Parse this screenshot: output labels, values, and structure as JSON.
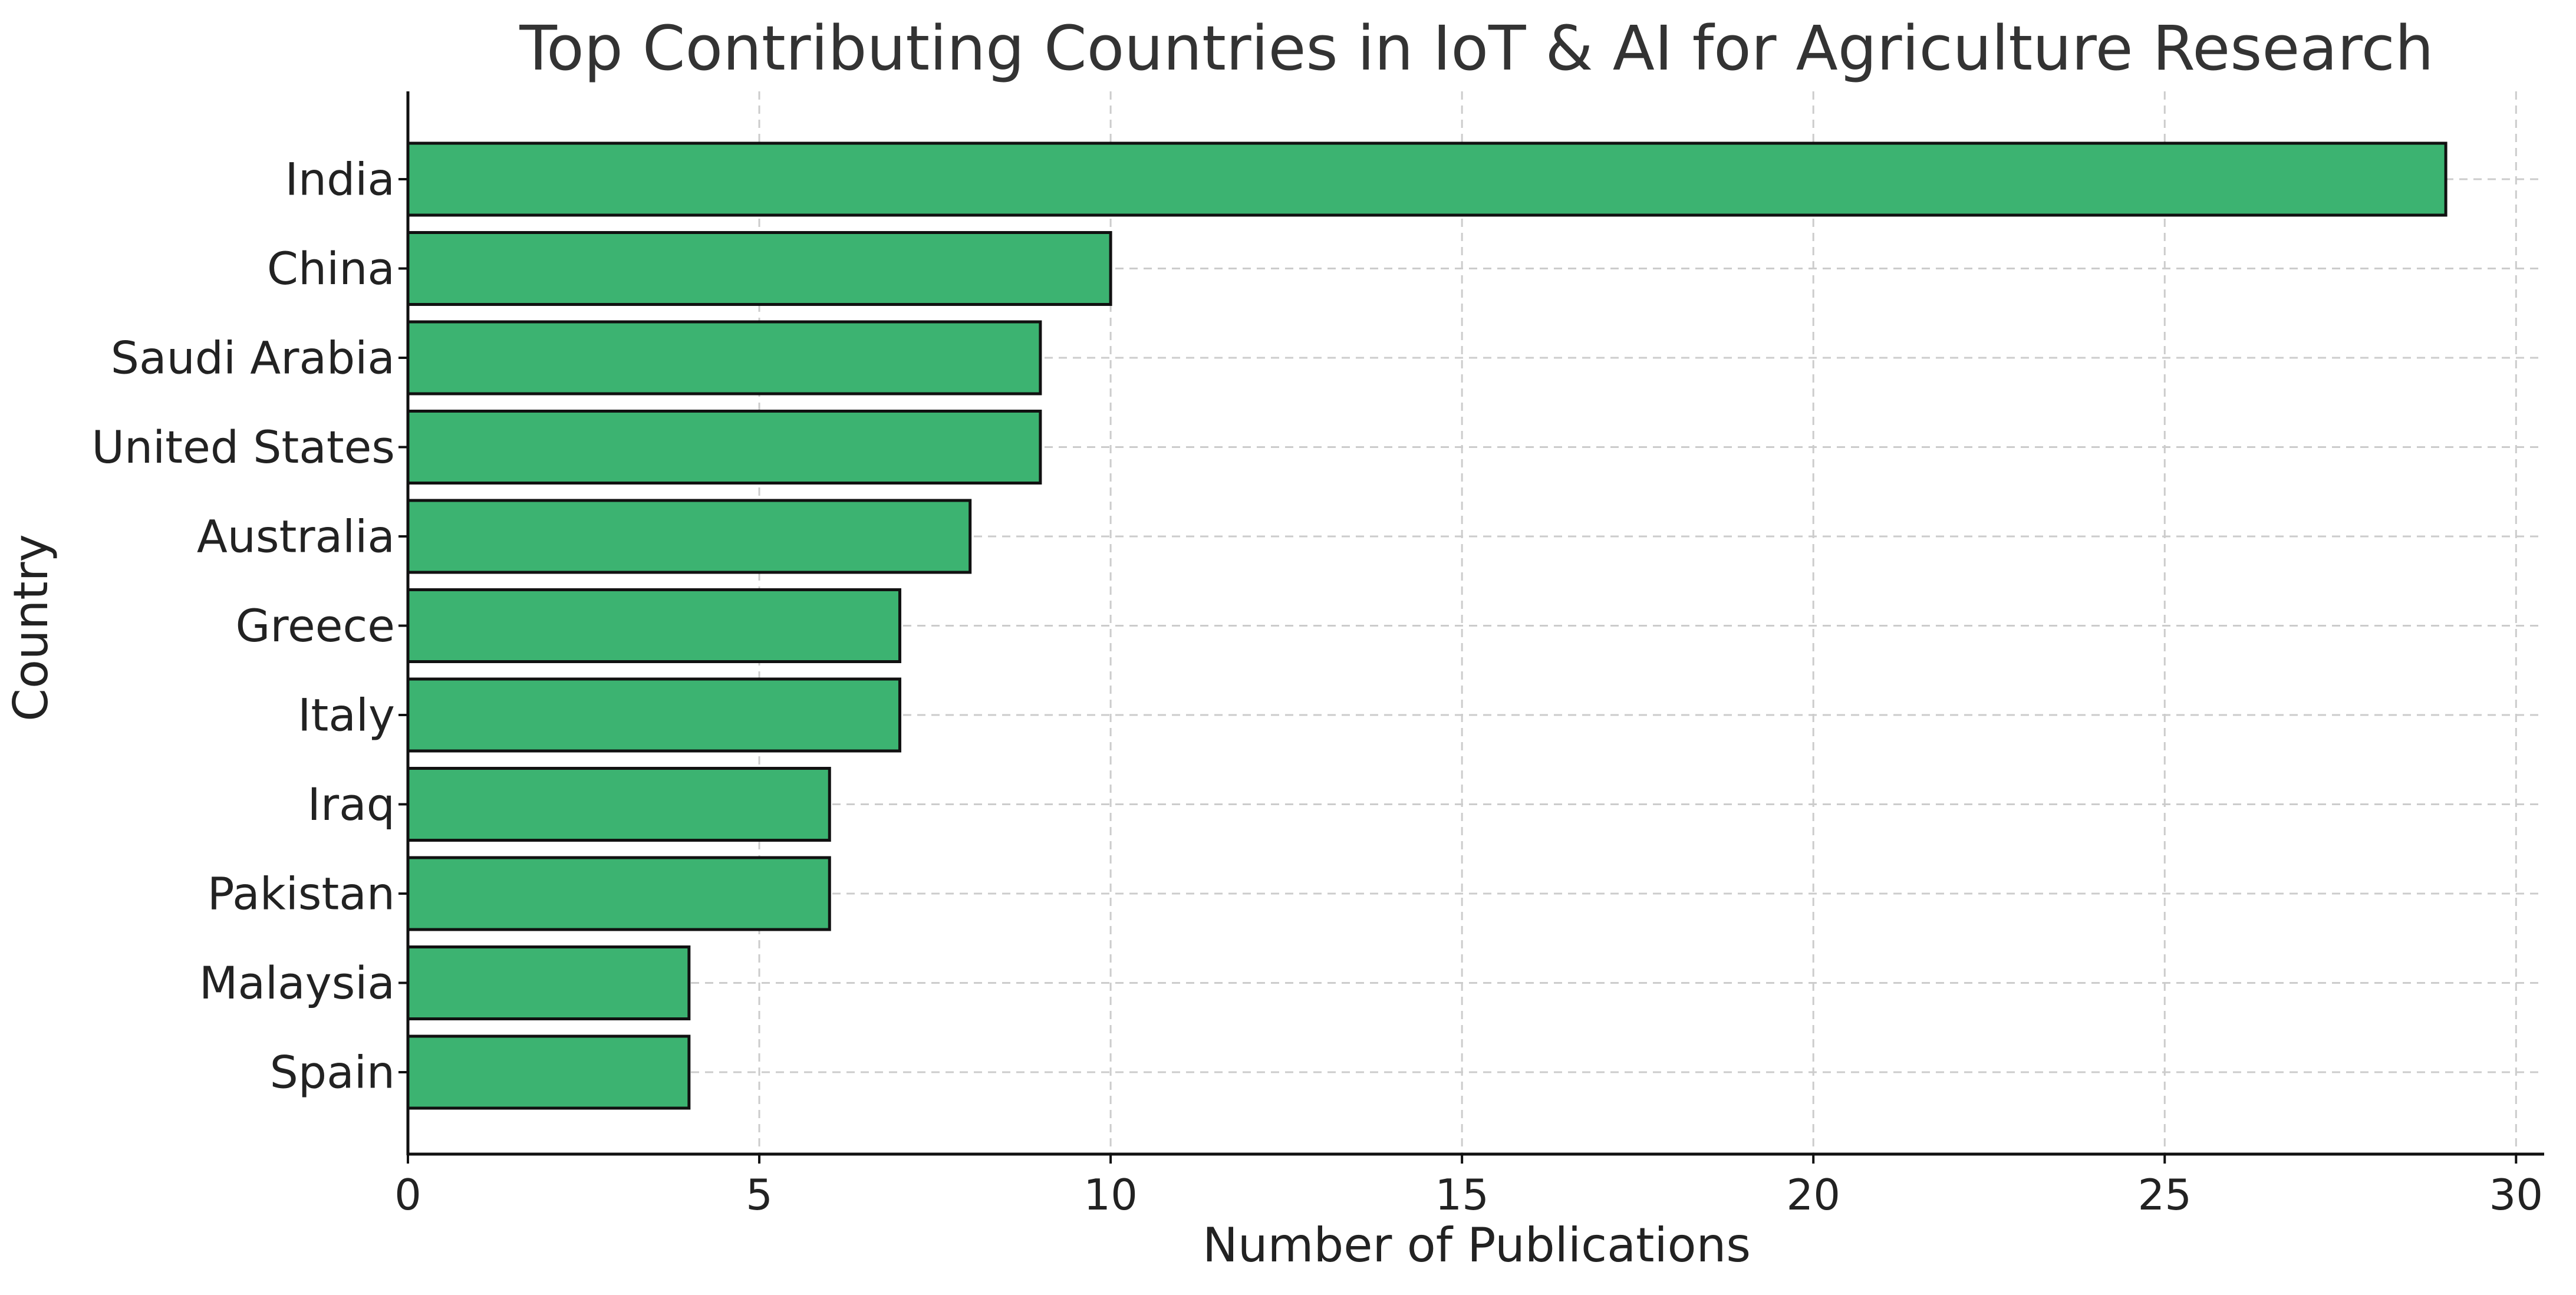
{
  "chart_data": {
    "type": "bar",
    "orientation": "horizontal",
    "title": "Top Contributing Countries in IoT & AI for Agriculture Research",
    "xlabel": "Number of Publications",
    "ylabel": "Country",
    "categories": [
      "India",
      "China",
      "Saudi Arabia",
      "United States",
      "Australia",
      "Greece",
      "Italy",
      "Iraq",
      "Pakistan",
      "Malaysia",
      "Spain"
    ],
    "values": [
      29,
      10,
      9,
      9,
      8,
      7,
      7,
      6,
      6,
      4,
      4
    ],
    "xlim": [
      0,
      30.4
    ],
    "xticks": [
      0,
      5,
      10,
      15,
      20,
      25,
      30
    ],
    "grid": true,
    "bar_color": "#3cb371",
    "bar_edge_color": "#111111",
    "grid_color": "#cccccc",
    "text_color": "#222222",
    "title_color": "#333333"
  }
}
